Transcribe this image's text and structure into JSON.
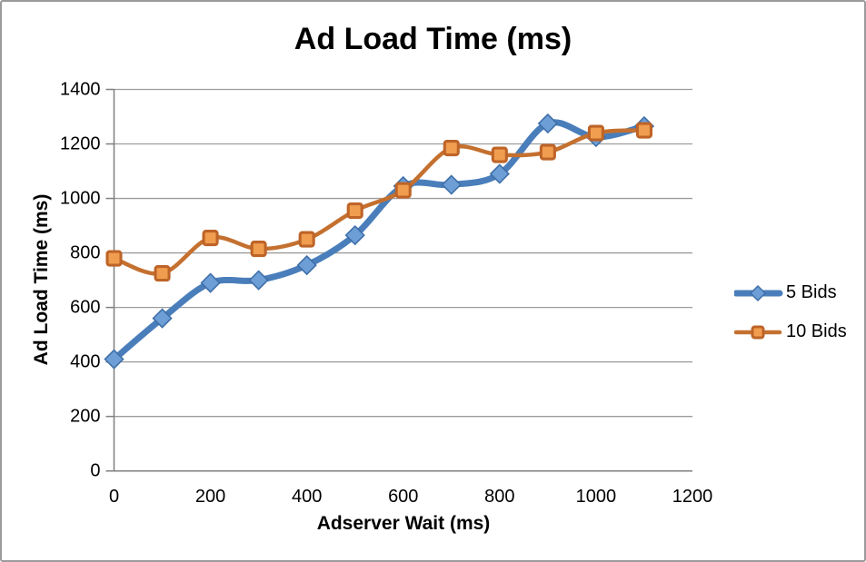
{
  "window": {
    "background": "#FFFFFF",
    "border_color": "#9A9A9A"
  },
  "chart_data": {
    "type": "line",
    "title": "Ad Load Time (ms)",
    "xlabel": "Adserver Wait (ms)",
    "ylabel": "Ad Load Time (ms)",
    "x": [
      0,
      100,
      200,
      300,
      400,
      500,
      600,
      700,
      800,
      900,
      1000,
      1100
    ],
    "xlim": [
      0,
      1200
    ],
    "ylim": [
      0,
      1400
    ],
    "x_ticks": [
      0,
      200,
      400,
      600,
      800,
      1000,
      1200
    ],
    "y_ticks": [
      0,
      200,
      400,
      600,
      800,
      1000,
      1200,
      1400
    ],
    "grid": "horizontal",
    "smooth_lines": true,
    "legend_position": "right",
    "axis_color": "#7F7F7F",
    "grid_color": "#9C9C9C",
    "text_color": "#000000",
    "series": [
      {
        "name": "5 Bids",
        "marker": "diamond",
        "line_color": "#4A7EBB",
        "marker_fill": "#6D9ED6",
        "marker_stroke": "#3F6FA8",
        "line_width": 7,
        "values": [
          410,
          560,
          690,
          700,
          755,
          865,
          1045,
          1050,
          1090,
          1275,
          1225,
          1265
        ]
      },
      {
        "name": "10 Bids",
        "marker": "square",
        "line_color": "#C4702F",
        "marker_fill": "#F09D4F",
        "marker_stroke": "#BE6428",
        "line_width": 4.5,
        "values": [
          780,
          725,
          855,
          815,
          850,
          955,
          1030,
          1185,
          1160,
          1170,
          1240,
          1250
        ]
      }
    ]
  }
}
